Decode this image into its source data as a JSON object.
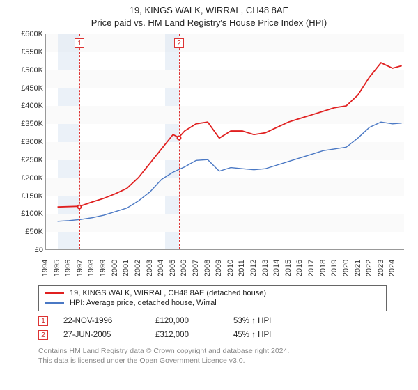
{
  "title": {
    "line1": "19, KINGS WALK, WIRRAL, CH48 8AE",
    "line2": "Price paid vs. HM Land Registry's House Price Index (HPI)",
    "fontsize": 13,
    "color": "#222222"
  },
  "chart": {
    "type": "line",
    "background_color": "#ffffff",
    "band_color": "#fafafa",
    "axis_color": "#999999",
    "tick_fontsize": 11,
    "x": {
      "min_year": 1994,
      "max_year": 2025,
      "ticks": [
        1994,
        1995,
        1996,
        1997,
        1998,
        1999,
        2000,
        2001,
        2002,
        2003,
        2004,
        2005,
        2006,
        2007,
        2008,
        2009,
        2010,
        2011,
        2012,
        2013,
        2014,
        2015,
        2016,
        2017,
        2018,
        2019,
        2020,
        2021,
        2022,
        2023,
        2024
      ]
    },
    "y": {
      "min": 0,
      "max": 600000,
      "tick_step": 50000,
      "prefix": "£",
      "suffix": "K",
      "divisor": 1000
    },
    "shaded_ranges": [
      {
        "from_year": 1995.0,
        "to_year": 1996.9
      },
      {
        "from_year": 2004.3,
        "to_year": 2005.5
      }
    ],
    "series": [
      {
        "id": "price_paid",
        "label": "19, KINGS WALK, WIRRAL, CH48 8AE (detached house)",
        "color": "#e02020",
        "width": 1.8,
        "points": [
          [
            1995.0,
            118000
          ],
          [
            1996.9,
            120000
          ],
          [
            1998.0,
            132000
          ],
          [
            1999.0,
            142000
          ],
          [
            2000.0,
            155000
          ],
          [
            2001.0,
            170000
          ],
          [
            2002.0,
            200000
          ],
          [
            2003.0,
            240000
          ],
          [
            2004.0,
            280000
          ],
          [
            2005.0,
            320000
          ],
          [
            2005.5,
            312000
          ],
          [
            2006.0,
            330000
          ],
          [
            2007.0,
            350000
          ],
          [
            2008.0,
            355000
          ],
          [
            2009.0,
            310000
          ],
          [
            2010.0,
            330000
          ],
          [
            2011.0,
            330000
          ],
          [
            2012.0,
            320000
          ],
          [
            2013.0,
            325000
          ],
          [
            2014.0,
            340000
          ],
          [
            2015.0,
            355000
          ],
          [
            2016.0,
            365000
          ],
          [
            2017.0,
            375000
          ],
          [
            2018.0,
            385000
          ],
          [
            2019.0,
            395000
          ],
          [
            2020.0,
            400000
          ],
          [
            2021.0,
            430000
          ],
          [
            2022.0,
            480000
          ],
          [
            2023.0,
            520000
          ],
          [
            2024.0,
            505000
          ],
          [
            2024.8,
            512000
          ]
        ]
      },
      {
        "id": "hpi",
        "label": "HPI: Average price, detached house, Wirral",
        "color": "#4a78c4",
        "width": 1.4,
        "points": [
          [
            1995.0,
            78000
          ],
          [
            1996.0,
            80000
          ],
          [
            1997.0,
            83000
          ],
          [
            1998.0,
            88000
          ],
          [
            1999.0,
            95000
          ],
          [
            2000.0,
            105000
          ],
          [
            2001.0,
            115000
          ],
          [
            2002.0,
            135000
          ],
          [
            2003.0,
            160000
          ],
          [
            2004.0,
            195000
          ],
          [
            2005.0,
            215000
          ],
          [
            2006.0,
            230000
          ],
          [
            2007.0,
            248000
          ],
          [
            2008.0,
            250000
          ],
          [
            2009.0,
            218000
          ],
          [
            2010.0,
            228000
          ],
          [
            2011.0,
            225000
          ],
          [
            2012.0,
            222000
          ],
          [
            2013.0,
            225000
          ],
          [
            2014.0,
            235000
          ],
          [
            2015.0,
            245000
          ],
          [
            2016.0,
            255000
          ],
          [
            2017.0,
            265000
          ],
          [
            2018.0,
            275000
          ],
          [
            2019.0,
            280000
          ],
          [
            2020.0,
            285000
          ],
          [
            2021.0,
            310000
          ],
          [
            2022.0,
            340000
          ],
          [
            2023.0,
            355000
          ],
          [
            2024.0,
            350000
          ],
          [
            2024.8,
            352000
          ]
        ]
      }
    ],
    "events": [
      {
        "n": "1",
        "year": 1996.9,
        "value": 120000,
        "date": "22-NOV-1996",
        "price": "£120,000",
        "delta": "53% ↑ HPI"
      },
      {
        "n": "2",
        "year": 2005.5,
        "value": 312000,
        "date": "27-JUN-2005",
        "price": "£312,000",
        "delta": "45% ↑ HPI"
      }
    ],
    "event_line_color": "#dd3333",
    "marker_fill": "#ffffff"
  },
  "legend": {
    "border_color": "#666666",
    "fontsize": 11
  },
  "footnote": {
    "line1": "Contains HM Land Registry data © Crown copyright and database right 2024.",
    "line2": "This data is licensed under the Open Government Licence v3.0.",
    "color": "#888888"
  }
}
